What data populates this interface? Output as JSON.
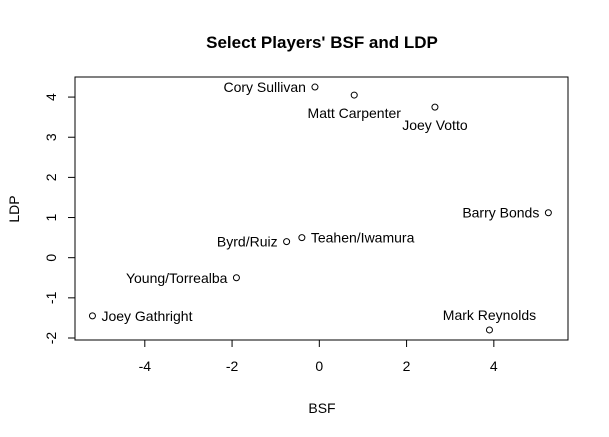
{
  "chart_data": {
    "type": "scatter",
    "title": "Select Players' BSF and LDP",
    "xlabel": "BSF",
    "ylabel": "LDP",
    "xlim": [
      -5.6,
      5.7
    ],
    "ylim": [
      -2.05,
      4.5
    ],
    "xticks": [
      -4,
      -2,
      0,
      2,
      4
    ],
    "yticks": [
      -2,
      -1,
      0,
      1,
      2,
      3,
      4
    ],
    "grid": false,
    "marker": "open-circle",
    "points": [
      {
        "label": "Cory Sullivan",
        "x": -0.1,
        "y": 4.25,
        "pos": "left"
      },
      {
        "label": "Matt Carpenter",
        "x": 0.8,
        "y": 4.05,
        "pos": "below"
      },
      {
        "label": "Joey Votto",
        "x": 2.65,
        "y": 3.75,
        "pos": "below"
      },
      {
        "label": "Barry Bonds",
        "x": 5.25,
        "y": 1.12,
        "pos": "left"
      },
      {
        "label": "Teahen/Iwamura",
        "x": -0.4,
        "y": 0.5,
        "pos": "right"
      },
      {
        "label": "Byrd/Ruiz",
        "x": -0.75,
        "y": 0.4,
        "pos": "left"
      },
      {
        "label": "Young/Torrealba",
        "x": -1.9,
        "y": -0.5,
        "pos": "left"
      },
      {
        "label": "Joey Gathright",
        "x": -5.2,
        "y": -1.45,
        "pos": "right"
      },
      {
        "label": "Mark Reynolds",
        "x": 3.9,
        "y": -1.8,
        "pos": "above"
      }
    ]
  }
}
